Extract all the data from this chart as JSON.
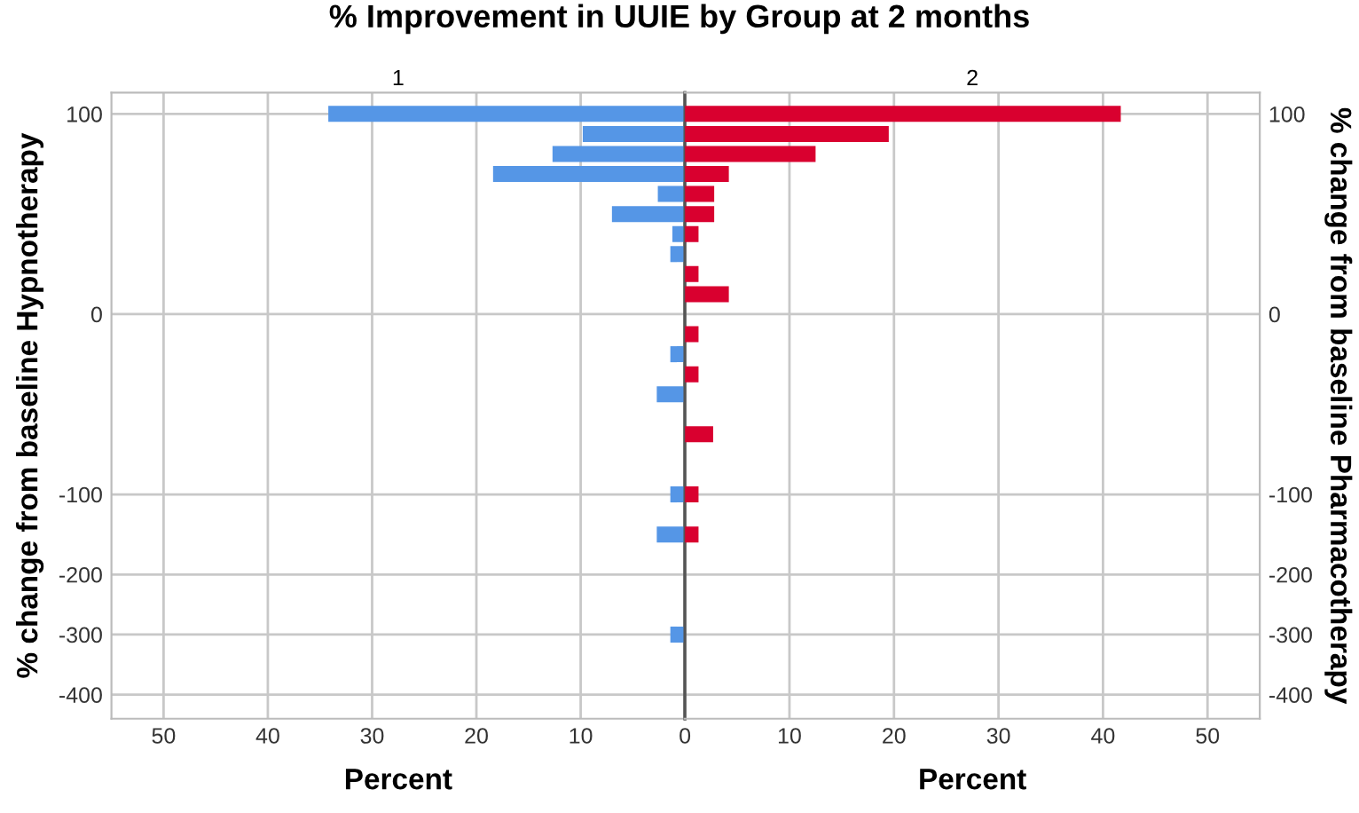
{
  "chart_data": [
    {
      "type": "bar",
      "orientation": "horizontal",
      "title": "% Improvement in UUIE by Group at 2 months",
      "subtitle": "1",
      "xlabel": "Percent",
      "ylabel": "% change from baseline Hypnotherapy",
      "categories": [
        "100",
        null,
        null,
        null,
        null,
        null,
        null,
        null,
        null,
        null,
        "0",
        null,
        null,
        null,
        null,
        null,
        null,
        null,
        null,
        "-100",
        null,
        null,
        null,
        "-200",
        null,
        null,
        "-300",
        null,
        null,
        "-400"
      ],
      "series": [
        {
          "color": "#5596e6",
          "values": [
            34.2,
            9.8,
            12.7,
            18.4,
            2.6,
            7.0,
            1.2,
            1.4,
            null,
            null,
            null,
            null,
            1.4,
            null,
            2.7,
            null,
            null,
            null,
            null,
            1.4,
            null,
            2.7,
            null,
            null,
            null,
            null,
            1.4,
            null,
            null,
            null
          ]
        }
      ],
      "xlim": [
        55,
        0
      ],
      "xticks": [
        50,
        40,
        30,
        20,
        10,
        0
      ],
      "grid": true
    },
    {
      "type": "bar",
      "orientation": "horizontal",
      "subtitle": "2",
      "xlabel": "Percent",
      "ylabel": "% change from baseline Pharmacotherapy",
      "categories": [
        "100",
        null,
        null,
        null,
        null,
        null,
        null,
        null,
        null,
        null,
        "0",
        null,
        null,
        null,
        null,
        null,
        null,
        null,
        null,
        "-100",
        null,
        null,
        null,
        "-200",
        null,
        null,
        "-300",
        null,
        null,
        "-400"
      ],
      "series": [
        {
          "color": "#d9002f",
          "values": [
            41.7,
            19.5,
            12.5,
            4.2,
            2.8,
            2.8,
            1.3,
            null,
            1.3,
            4.2,
            null,
            1.3,
            null,
            1.3,
            null,
            null,
            2.7,
            null,
            null,
            1.3,
            null,
            1.3,
            null,
            null,
            null,
            null,
            null,
            null,
            null,
            null
          ]
        }
      ],
      "xlim": [
        0,
        55
      ],
      "xticks": [
        {
          "value": 0,
          "label": null
        },
        10,
        20,
        30,
        40,
        50
      ],
      "grid": true
    }
  ]
}
